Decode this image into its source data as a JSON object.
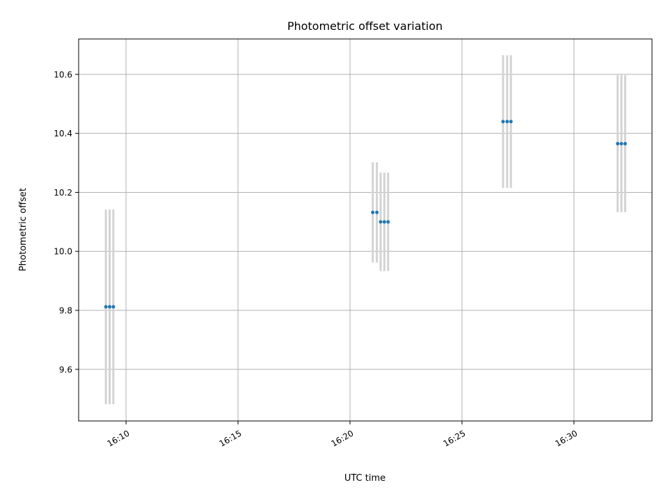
{
  "chart_data": {
    "type": "scatter",
    "title": "Photometric offset variation",
    "xlabel": "UTC time",
    "ylabel": "Photometric offset",
    "x_ticks": [
      "16:10",
      "16:15",
      "16:20",
      "16:25",
      "16:30"
    ],
    "y_ticks": [
      "9.6",
      "9.8",
      "10.0",
      "10.2",
      "10.4",
      "10.6"
    ],
    "xlim": [
      "16:07:53",
      "16:33:29"
    ],
    "ylim": [
      9.425,
      10.72
    ],
    "grid": true,
    "colors": {
      "points": "#1f77b4",
      "errorbars": "#d3d3d3",
      "grid": "#b0b0b0"
    },
    "points": [
      {
        "x": "16:09:06",
        "y": 9.812,
        "yerr": 0.33
      },
      {
        "x": "16:09:16",
        "y": 9.812,
        "yerr": 0.33
      },
      {
        "x": "16:09:26",
        "y": 9.812,
        "yerr": 0.33
      },
      {
        "x": "16:21:01",
        "y": 10.132,
        "yerr": 0.17
      },
      {
        "x": "16:21:12",
        "y": 10.132,
        "yerr": 0.17
      },
      {
        "x": "16:21:22",
        "y": 10.1,
        "yerr": 0.167
      },
      {
        "x": "16:21:32",
        "y": 10.1,
        "yerr": 0.167
      },
      {
        "x": "16:21:42",
        "y": 10.1,
        "yerr": 0.167
      },
      {
        "x": "16:26:50",
        "y": 10.44,
        "yerr": 0.225
      },
      {
        "x": "16:27:01",
        "y": 10.44,
        "yerr": 0.225
      },
      {
        "x": "16:27:11",
        "y": 10.44,
        "yerr": 0.225
      },
      {
        "x": "16:31:57",
        "y": 10.365,
        "yerr": 0.232
      },
      {
        "x": "16:32:07",
        "y": 10.365,
        "yerr": 0.232
      },
      {
        "x": "16:32:17",
        "y": 10.365,
        "yerr": 0.232
      }
    ]
  }
}
